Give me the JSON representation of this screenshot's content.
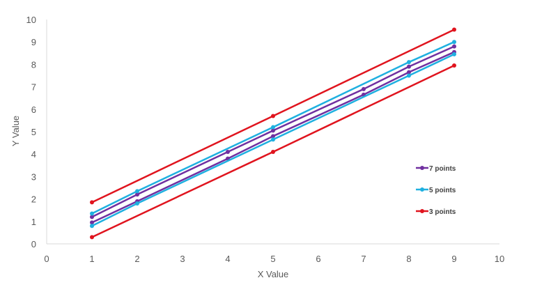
{
  "chart_data": {
    "type": "line",
    "title": "",
    "xlabel": "X Value",
    "ylabel": "Y Value",
    "xlim": [
      0,
      10
    ],
    "ylim": [
      0,
      10
    ],
    "x_ticks": [
      "0",
      "1",
      "2",
      "3",
      "4",
      "5",
      "6",
      "7",
      "8",
      "9",
      "10"
    ],
    "y_ticks": [
      "0",
      "1",
      "2",
      "3",
      "4",
      "5",
      "6",
      "7",
      "8",
      "9",
      "10"
    ],
    "grid": false,
    "legend_position": "right-inside",
    "series": [
      {
        "name": "7 points",
        "color": "#7030A0",
        "lines": [
          {
            "x": [
              1,
              2,
              4,
              5,
              7,
              8,
              9
            ],
            "y": [
              1.2,
              2.2,
              4.1,
              5.05,
              6.9,
              7.9,
              8.8
            ]
          },
          {
            "x": [
              1,
              2,
              4,
              5,
              7,
              8,
              9
            ],
            "y": [
              0.95,
              1.9,
              3.8,
              4.8,
              6.65,
              7.65,
              8.55
            ]
          }
        ]
      },
      {
        "name": "5 points",
        "color": "#1FB0E0",
        "lines": [
          {
            "x": [
              1,
              2,
              5,
              8,
              9
            ],
            "y": [
              1.35,
              2.35,
              5.2,
              8.1,
              9.0
            ]
          },
          {
            "x": [
              1,
              2,
              5,
              8,
              9
            ],
            "y": [
              0.8,
              1.8,
              4.65,
              7.5,
              8.45
            ]
          }
        ]
      },
      {
        "name": "3 points",
        "color": "#E0141E",
        "lines": [
          {
            "x": [
              1,
              5,
              9
            ],
            "y": [
              1.85,
              5.7,
              9.55
            ]
          },
          {
            "x": [
              1,
              5,
              9
            ],
            "y": [
              0.3,
              4.1,
              7.95
            ]
          }
        ]
      }
    ]
  },
  "legend": {
    "items": [
      {
        "label": "7 points",
        "color": "#7030A0"
      },
      {
        "label": "5 points",
        "color": "#1FB0E0"
      },
      {
        "label": "3 points",
        "color": "#E0141E"
      }
    ]
  },
  "axes": {
    "x_title": "X Value",
    "y_title": "Y Value",
    "axis_color": "#D9D9D9"
  }
}
